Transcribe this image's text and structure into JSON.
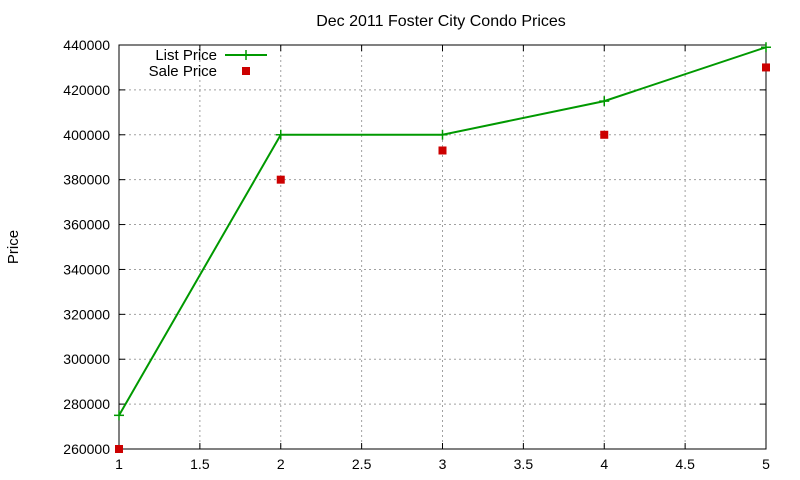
{
  "chart_data": {
    "type": "line",
    "title": "Dec 2011 Foster City Condo Prices",
    "xlabel": "",
    "ylabel": "Price",
    "xlim": [
      1,
      5
    ],
    "ylim": [
      260000,
      440000
    ],
    "x_ticks": [
      "1",
      "1.5",
      "2",
      "2.5",
      "3",
      "3.5",
      "4",
      "4.5",
      "5"
    ],
    "y_ticks": [
      "260000",
      "280000",
      "300000",
      "320000",
      "340000",
      "360000",
      "380000",
      "400000",
      "420000",
      "440000"
    ],
    "grid": true,
    "legend_position": "top-left",
    "series": [
      {
        "name": "List Price",
        "style": "linespoints",
        "marker": "plus",
        "color": "#009900",
        "x": [
          1,
          2,
          3,
          4,
          5
        ],
        "values": [
          275000,
          400000,
          400000,
          415000,
          439000
        ]
      },
      {
        "name": "Sale Price",
        "style": "points",
        "marker": "square",
        "color": "#cc0000",
        "x": [
          1,
          2,
          3,
          4,
          5
        ],
        "values": [
          260000,
          380000,
          393000,
          400000,
          430000
        ]
      }
    ]
  }
}
